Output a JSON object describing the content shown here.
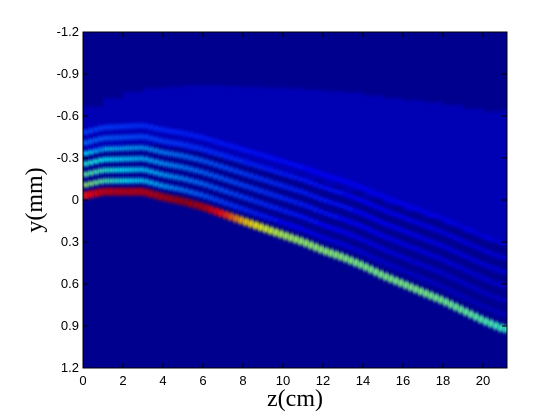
{
  "chart_data": {
    "type": "heatmap",
    "title": "",
    "xlabel": "z(cm)",
    "ylabel": "y(mm)",
    "xlim": [
      0,
      21.2
    ],
    "ylim": [
      1.2,
      -1.2
    ],
    "y_axis_reversed": true,
    "x_ticks": [
      "0",
      "2",
      "4",
      "6",
      "8",
      "10",
      "12",
      "14",
      "16",
      "18",
      "20"
    ],
    "x_tick_values": [
      0,
      2,
      4,
      6,
      8,
      10,
      12,
      14,
      16,
      18,
      20
    ],
    "y_ticks": [
      "-1.2",
      "-0.9",
      "-0.6",
      "-0.3",
      "0",
      "0.3",
      "0.6",
      "0.9",
      "1.2"
    ],
    "y_tick_values": [
      -1.2,
      -0.9,
      -0.6,
      -0.3,
      0,
      0.3,
      0.6,
      0.9,
      1.2
    ],
    "colormap": "jet",
    "background_value": 0.0,
    "main_beam_centroid": {
      "z_cm": [
        0,
        1,
        2,
        3,
        4,
        5,
        6,
        7,
        8,
        9,
        10,
        11,
        12,
        13,
        14,
        15,
        16,
        17,
        18,
        19,
        20,
        21
      ],
      "y_mm": [
        -0.03,
        -0.06,
        -0.06,
        -0.06,
        -0.02,
        0.01,
        0.05,
        0.1,
        0.15,
        0.2,
        0.25,
        0.3,
        0.36,
        0.41,
        0.47,
        0.54,
        0.6,
        0.66,
        0.72,
        0.79,
        0.86,
        0.92
      ]
    },
    "peak_intensity": {
      "z_cm": [
        0,
        1,
        2,
        3,
        4,
        5,
        6,
        7,
        8,
        9,
        10,
        11,
        12,
        13,
        14,
        15,
        16,
        17,
        18,
        19,
        20,
        21
      ],
      "value": [
        0.85,
        0.92,
        0.93,
        0.93,
        0.95,
        0.97,
        0.95,
        0.85,
        0.68,
        0.6,
        0.55,
        0.53,
        0.52,
        0.51,
        0.5,
        0.5,
        0.5,
        0.5,
        0.49,
        0.48,
        0.46,
        0.43
      ]
    },
    "fringe_spacing_mm": 0.075,
    "fringe_count": 6
  }
}
